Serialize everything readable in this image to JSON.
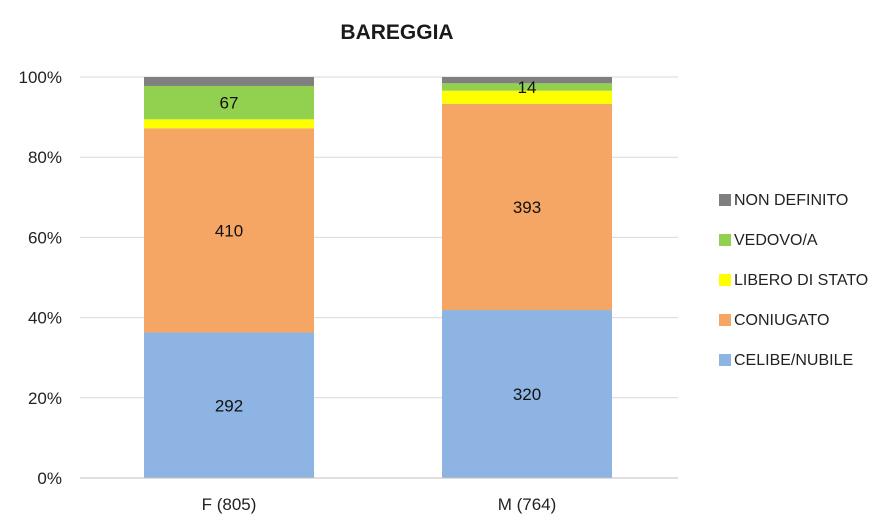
{
  "chart_data": {
    "type": "bar",
    "stacked": "percent",
    "title": "BAREGGIA",
    "categories": [
      "F (805)",
      "M (764)"
    ],
    "y_ticks": [
      "0%",
      "20%",
      "40%",
      "60%",
      "80%",
      "100%"
    ],
    "ylim": [
      0,
      100
    ],
    "grid": true,
    "legend_position": "right",
    "series": [
      {
        "name": "CELIBE/NUBILE",
        "color": "#8EB4E3",
        "values": [
          292,
          320
        ],
        "labels": [
          "292",
          "320"
        ]
      },
      {
        "name": "CONIUGATO",
        "color": "#F6A664",
        "values": [
          410,
          393
        ],
        "labels": [
          "410",
          "393"
        ]
      },
      {
        "name": "LIBERO DI STATO",
        "color": "#FFFF00",
        "values": [
          18,
          25
        ],
        "labels": [
          "",
          ""
        ]
      },
      {
        "name": "VEDOVO/A",
        "color": "#92D050",
        "values": [
          67,
          14
        ],
        "labels": [
          "67",
          "14"
        ]
      },
      {
        "name": "NON DEFINITO",
        "color": "#7F7F7F",
        "values": [
          18,
          12
        ],
        "labels": [
          "",
          ""
        ]
      }
    ]
  }
}
